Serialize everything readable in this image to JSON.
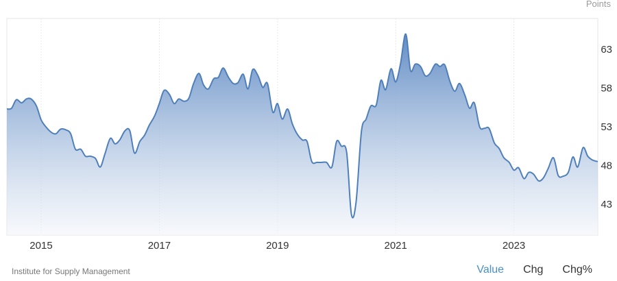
{
  "chart_data": {
    "type": "area",
    "unit_label": "Points",
    "ylim": [
      39,
      67
    ],
    "yticks": [
      43,
      48,
      53,
      58,
      63
    ],
    "xlim": [
      2014.42,
      2024.42
    ],
    "xticks": [
      {
        "value": 2015,
        "label": "2015"
      },
      {
        "value": 2017,
        "label": "2017"
      },
      {
        "value": 2019,
        "label": "2019"
      },
      {
        "value": 2021,
        "label": "2021"
      },
      {
        "value": 2023,
        "label": "2023"
      }
    ],
    "grid": "vertical",
    "colors": {
      "line": "#4f7fba",
      "fill_top": "#5a87c2",
      "fill_bottom": "#f2f5fa"
    },
    "series": [
      {
        "points": [
          [
            2014.42,
            55.3
          ],
          [
            2014.5,
            55.4
          ],
          [
            2014.58,
            56.5
          ],
          [
            2014.67,
            56.1
          ],
          [
            2014.75,
            56.6
          ],
          [
            2014.83,
            56.6
          ],
          [
            2014.92,
            55.7
          ],
          [
            2015.0,
            53.9
          ],
          [
            2015.08,
            53.0
          ],
          [
            2015.17,
            52.3
          ],
          [
            2015.25,
            52.1
          ],
          [
            2015.33,
            52.7
          ],
          [
            2015.42,
            52.6
          ],
          [
            2015.5,
            52.1
          ],
          [
            2015.58,
            50.1
          ],
          [
            2015.67,
            50.1
          ],
          [
            2015.75,
            49.2
          ],
          [
            2015.83,
            49.2
          ],
          [
            2015.92,
            48.9
          ],
          [
            2016.0,
            47.8
          ],
          [
            2016.08,
            49.5
          ],
          [
            2016.17,
            51.5
          ],
          [
            2016.25,
            50.8
          ],
          [
            2016.33,
            51.3
          ],
          [
            2016.42,
            52.5
          ],
          [
            2016.5,
            52.5
          ],
          [
            2016.58,
            49.6
          ],
          [
            2016.67,
            51.1
          ],
          [
            2016.75,
            51.9
          ],
          [
            2016.83,
            53.2
          ],
          [
            2016.92,
            54.4
          ],
          [
            2017.0,
            56.0
          ],
          [
            2017.08,
            57.7
          ],
          [
            2017.17,
            57.2
          ],
          [
            2017.25,
            56.0
          ],
          [
            2017.33,
            56.6
          ],
          [
            2017.42,
            56.3
          ],
          [
            2017.5,
            56.7
          ],
          [
            2017.58,
            58.6
          ],
          [
            2017.67,
            59.9
          ],
          [
            2017.75,
            58.4
          ],
          [
            2017.83,
            57.9
          ],
          [
            2017.92,
            59.2
          ],
          [
            2018.0,
            59.4
          ],
          [
            2018.08,
            60.6
          ],
          [
            2018.17,
            59.4
          ],
          [
            2018.25,
            58.6
          ],
          [
            2018.33,
            58.7
          ],
          [
            2018.42,
            59.8
          ],
          [
            2018.5,
            57.9
          ],
          [
            2018.58,
            60.4
          ],
          [
            2018.67,
            59.6
          ],
          [
            2018.75,
            58.1
          ],
          [
            2018.83,
            58.6
          ],
          [
            2018.92,
            54.9
          ],
          [
            2019.0,
            56.0
          ],
          [
            2019.08,
            54.0
          ],
          [
            2019.17,
            55.3
          ],
          [
            2019.25,
            53.4
          ],
          [
            2019.33,
            52.1
          ],
          [
            2019.42,
            51.3
          ],
          [
            2019.5,
            51.1
          ],
          [
            2019.58,
            48.5
          ],
          [
            2019.67,
            48.4
          ],
          [
            2019.75,
            48.4
          ],
          [
            2019.83,
            48.4
          ],
          [
            2019.92,
            47.8
          ],
          [
            2020.0,
            51.1
          ],
          [
            2020.08,
            50.5
          ],
          [
            2020.17,
            49.7
          ],
          [
            2020.25,
            41.7
          ],
          [
            2020.33,
            43.3
          ],
          [
            2020.42,
            52.4
          ],
          [
            2020.5,
            54.0
          ],
          [
            2020.58,
            55.7
          ],
          [
            2020.67,
            55.8
          ],
          [
            2020.75,
            59.0
          ],
          [
            2020.83,
            57.8
          ],
          [
            2020.92,
            60.5
          ],
          [
            2021.0,
            58.8
          ],
          [
            2021.08,
            61.1
          ],
          [
            2021.17,
            65.0
          ],
          [
            2021.25,
            60.3
          ],
          [
            2021.33,
            61.1
          ],
          [
            2021.42,
            60.8
          ],
          [
            2021.5,
            59.6
          ],
          [
            2021.58,
            59.9
          ],
          [
            2021.67,
            61.1
          ],
          [
            2021.75,
            60.8
          ],
          [
            2021.83,
            61.0
          ],
          [
            2021.92,
            58.8
          ],
          [
            2022.0,
            57.6
          ],
          [
            2022.08,
            58.6
          ],
          [
            2022.17,
            57.1
          ],
          [
            2022.25,
            55.4
          ],
          [
            2022.33,
            56.1
          ],
          [
            2022.42,
            53.0
          ],
          [
            2022.5,
            52.8
          ],
          [
            2022.58,
            52.8
          ],
          [
            2022.67,
            50.9
          ],
          [
            2022.75,
            50.2
          ],
          [
            2022.83,
            49.0
          ],
          [
            2022.92,
            48.4
          ],
          [
            2023.0,
            47.4
          ],
          [
            2023.08,
            47.7
          ],
          [
            2023.17,
            46.3
          ],
          [
            2023.25,
            47.1
          ],
          [
            2023.33,
            46.9
          ],
          [
            2023.42,
            46.0
          ],
          [
            2023.5,
            46.4
          ],
          [
            2023.58,
            47.6
          ],
          [
            2023.67,
            49.0
          ],
          [
            2023.75,
            46.7
          ],
          [
            2023.83,
            46.6
          ],
          [
            2023.92,
            47.1
          ],
          [
            2024.0,
            49.1
          ],
          [
            2024.08,
            47.8
          ],
          [
            2024.17,
            50.3
          ],
          [
            2024.25,
            49.2
          ],
          [
            2024.33,
            48.7
          ],
          [
            2024.42,
            48.5
          ]
        ]
      }
    ]
  },
  "footer": {
    "source": "Institute for Supply Management",
    "tabs": [
      {
        "label": "Value",
        "active": true
      },
      {
        "label": "Chg",
        "active": false
      },
      {
        "label": "Chg%",
        "active": false
      }
    ]
  }
}
